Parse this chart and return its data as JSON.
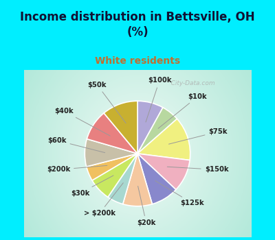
{
  "title": "Income distribution in Bettsville, OH\n(%)",
  "subtitle": "White residents",
  "title_color": "#111133",
  "subtitle_color": "#c07030",
  "background_cyan": "#00eeff",
  "labels": [
    "$100k",
    "$10k",
    "$75k",
    "$150k",
    "$125k",
    "$20k",
    "> $200k",
    "$30k",
    "$200k",
    "$60k",
    "$40k",
    "$50k"
  ],
  "sizes": [
    8.0,
    5.5,
    13.5,
    10.0,
    8.5,
    9.0,
    5.0,
    7.0,
    4.5,
    8.5,
    9.5,
    11.0
  ],
  "colors": [
    "#b0a8d8",
    "#b8d8a0",
    "#f0f080",
    "#f0b0c0",
    "#8888cc",
    "#f5c8a0",
    "#a8d8d0",
    "#c8e860",
    "#f0c060",
    "#c8c0a8",
    "#e88080",
    "#c8b030"
  ],
  "label_color": "#222222",
  "startangle": 90,
  "watermark": "   City-Data.com"
}
